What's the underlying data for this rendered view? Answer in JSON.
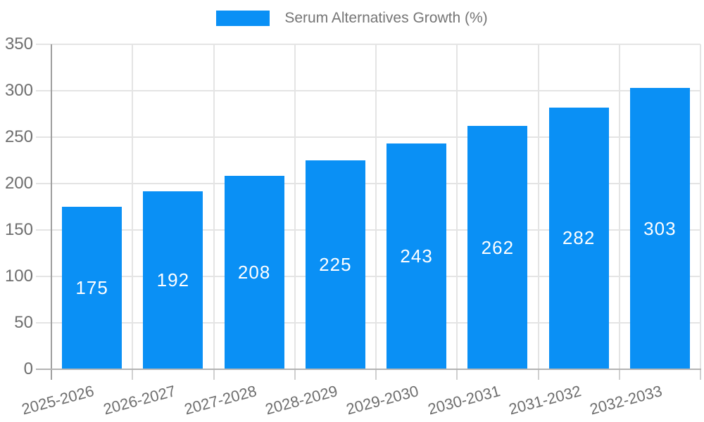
{
  "legend": {
    "label": "Serum Alternatives Growth (%)"
  },
  "chart_data": {
    "type": "bar",
    "title": "Serum Alternatives Growth (%)",
    "categories": [
      "2025-2026",
      "2026-2027",
      "2027-2028",
      "2028-2029",
      "2029-2030",
      "2030-2031",
      "2031-2032",
      "2032-2033"
    ],
    "series": [
      {
        "name": "Serum Alternatives Growth (%)",
        "values": [
          175,
          192,
          208,
          225,
          243,
          262,
          282,
          303
        ]
      }
    ],
    "value_labels": [
      "175",
      "192",
      "208",
      "225",
      "243",
      "262",
      "282",
      "303"
    ],
    "xlabel": "",
    "ylabel": "",
    "ylim": [
      0,
      350
    ],
    "yticks": [
      0,
      50,
      100,
      150,
      200,
      250,
      300,
      350
    ],
    "grid": true,
    "legend_position": "top-center",
    "x_tick_rotation_deg": -15,
    "colors": {
      "bar": "#0a90f5",
      "axis_text": "#6e6e6e",
      "legend_text": "#757575",
      "gridline": "#e4e4e4",
      "x_axis_line": "#b3b3b3",
      "y_axis_line": "#9e9e9e",
      "value_label": "#ffffff"
    }
  }
}
